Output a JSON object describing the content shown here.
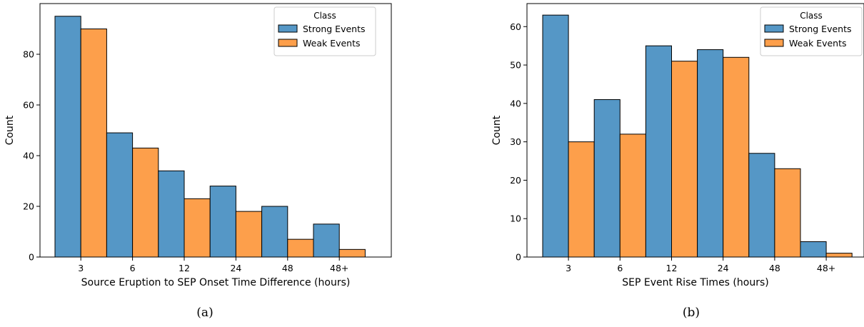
{
  "colors": {
    "strong": "#5597c6",
    "weak": "#fd9f4b",
    "edge": "#000000"
  },
  "chart_data": [
    {
      "type": "bar",
      "caption": "(a)",
      "categories": [
        "3",
        "6",
        "12",
        "24",
        "48",
        "48+"
      ],
      "xlabel": "Source Eruption to SEP Onset Time Difference (hours)",
      "ylabel": "Count",
      "ylim": [
        0,
        100
      ],
      "yticks": [
        0,
        20,
        40,
        60,
        80
      ],
      "legend": {
        "title": "Class",
        "position": "top-right"
      },
      "series": [
        {
          "name": "Strong Events",
          "values": [
            95,
            49,
            34,
            28,
            20,
            13
          ]
        },
        {
          "name": "Weak Events",
          "values": [
            90,
            43,
            23,
            18,
            7,
            3
          ]
        }
      ]
    },
    {
      "type": "bar",
      "caption": "(b)",
      "categories": [
        "3",
        "6",
        "12",
        "24",
        "48",
        "48+"
      ],
      "xlabel": "SEP Event Rise Times (hours)",
      "ylabel": "Count",
      "ylim": [
        0,
        66
      ],
      "yticks": [
        0,
        10,
        20,
        30,
        40,
        50,
        60
      ],
      "legend": {
        "title": "Class",
        "position": "top-right"
      },
      "series": [
        {
          "name": "Strong Events",
          "values": [
            63,
            41,
            55,
            54,
            27,
            4
          ]
        },
        {
          "name": "Weak Events",
          "values": [
            30,
            32,
            51,
            52,
            23,
            1
          ]
        }
      ]
    }
  ]
}
